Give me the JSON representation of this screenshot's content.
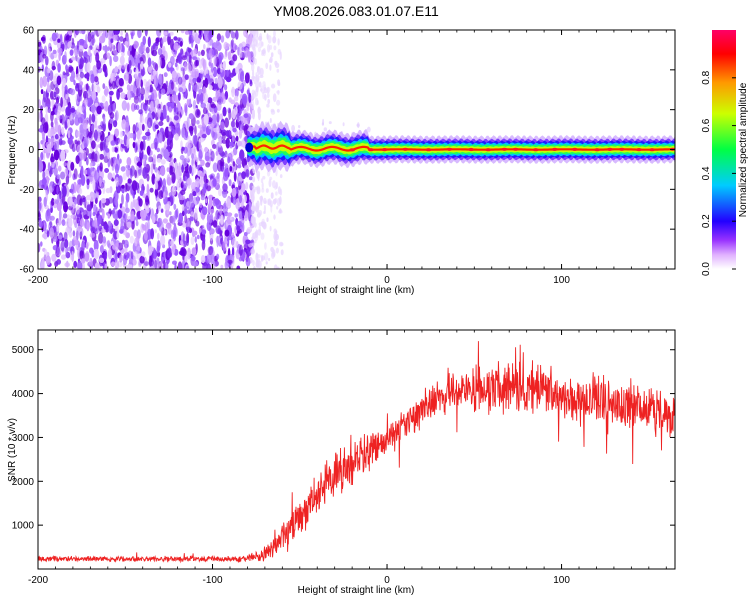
{
  "window": {
    "title": "YM08.2026.083.01.07.E11"
  },
  "chart_data": [
    {
      "type": "heatmap",
      "title": "YM08.2026.083.01.07.E11",
      "xlabel": "Height of straight line (km)",
      "ylabel": "Frequency (Hz)",
      "xlim": [
        -200,
        165
      ],
      "ylim": [
        -60,
        60
      ],
      "xticks": [
        -200,
        -100,
        0,
        100
      ],
      "yticks": [
        -60,
        -40,
        -20,
        0,
        20,
        40,
        60
      ],
      "colorbar": {
        "label": "Normalized spectral amplitude",
        "range": [
          0,
          1
        ],
        "ticks": [
          0.0,
          0.2,
          0.4,
          0.6,
          0.8
        ],
        "tick_labels": [
          "0.0",
          "0.2",
          "0.4",
          "0.6",
          "0.8"
        ],
        "colormap": [
          "#ffffff",
          "#cc66ff",
          "#6600ff",
          "#0000ff",
          "#00ffff",
          "#00ff66",
          "#ffff00",
          "#ff9900",
          "#ff0000",
          "#ff0066"
        ]
      },
      "features": {
        "noise_region": [
          -200,
          -77
        ],
        "sparse_noise_region": [
          -77,
          -60
        ],
        "signal_start": -80,
        "signal_frequency_hz": 0,
        "signal_band_hz": [
          -2,
          2
        ],
        "early_wobble_region": [
          -78,
          -10
        ]
      }
    },
    {
      "type": "line",
      "xlabel": "Height of straight line (km)",
      "ylabel": "SNR (10 * v/v)",
      "xlim": [
        -200,
        165
      ],
      "ylim": [
        0,
        5450
      ],
      "xticks": [
        -200,
        -100,
        0,
        100
      ],
      "yticks": [
        1000,
        2000,
        3000,
        4000,
        5000
      ],
      "color": "#ee2222",
      "series": [
        {
          "name": "SNR",
          "x": [
            -200,
            -150,
            -100,
            -80,
            -70,
            -60,
            -50,
            -40,
            -30,
            -20,
            -10,
            0,
            10,
            20,
            30,
            40,
            50,
            60,
            70,
            80,
            90,
            100,
            110,
            120,
            130,
            140,
            150,
            160,
            165
          ],
          "values": [
            230,
            230,
            230,
            240,
            330,
            700,
            1200,
            1750,
            2100,
            2450,
            2700,
            2900,
            3250,
            3650,
            4000,
            4050,
            4100,
            4100,
            4150,
            4100,
            4200,
            4000,
            3850,
            3900,
            3800,
            3700,
            3650,
            3500,
            3450
          ],
          "noise_amplitude": [
            80,
            80,
            80,
            100,
            200,
            450,
            600,
            650,
            650,
            600,
            500,
            400,
            450,
            500,
            550,
            600,
            650,
            650,
            650,
            700,
            650,
            650,
            650,
            650,
            650,
            650,
            650,
            600,
            600
          ]
        }
      ]
    }
  ]
}
